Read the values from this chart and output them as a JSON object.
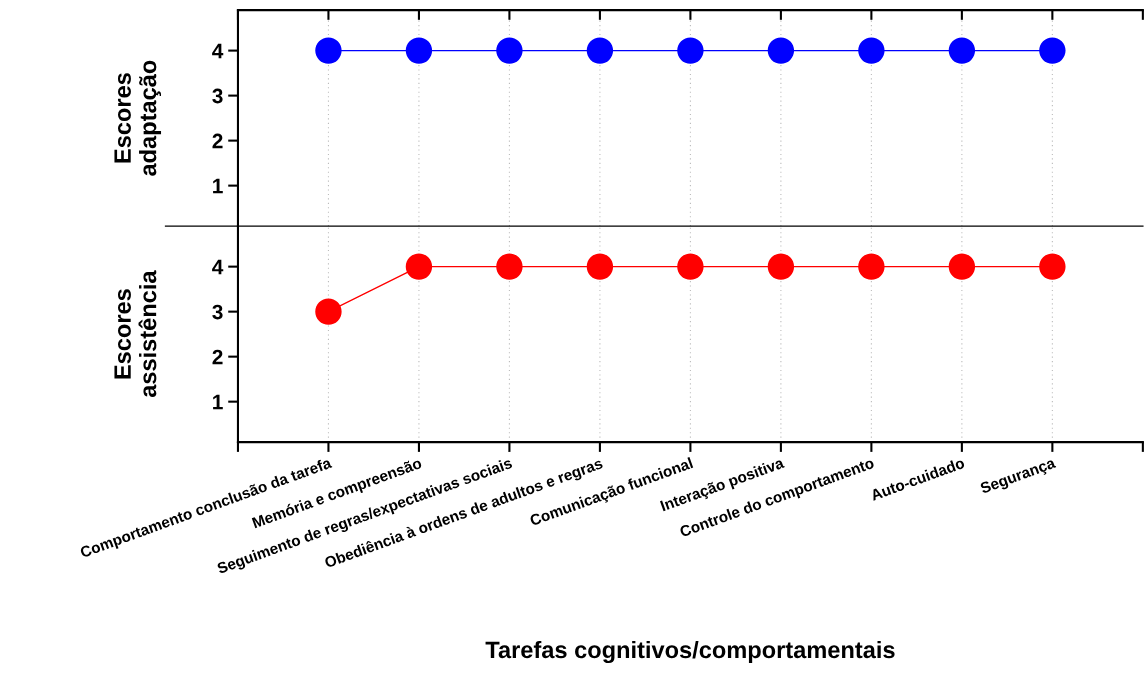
{
  "chart_data": [
    {
      "type": "line",
      "ylabel": "Escores\nadaptação",
      "categories": [
        null,
        null,
        null,
        null,
        null,
        null,
        null,
        null,
        null
      ],
      "series": [
        {
          "color": "#0000ff",
          "values": [
            4,
            4,
            4,
            4,
            4,
            4,
            4,
            4,
            4
          ]
        }
      ],
      "ylim": [
        0.1,
        4.9
      ],
      "yticks": [
        1,
        2,
        3,
        4
      ],
      "grid": "x",
      "marker": "circle",
      "line_style": "solid",
      "tick_labels": "y"
    },
    {
      "type": "line",
      "ylabel": "Escores\nassistência",
      "xlabel": "Tarefas cognitivos/comportamentais",
      "categories": [
        "Comportamento conclusão da tarefa",
        "Memória e compreensão",
        "Seguimento de regras/expectativas sociais",
        "Obediência à ordens de adultos e regras",
        "Comunicação funcional",
        "Interação positiva",
        "Controle do comportamento",
        "Auto-cuidado",
        "Segurança"
      ],
      "series": [
        {
          "color": "#ff0000",
          "values": [
            3,
            4,
            4,
            4,
            4,
            4,
            4,
            4,
            4
          ]
        }
      ],
      "ylim": [
        0.1,
        4.9
      ],
      "yticks": [
        1,
        2,
        3,
        4
      ],
      "grid": "x",
      "marker": "circle",
      "line_style": "solid"
    }
  ]
}
